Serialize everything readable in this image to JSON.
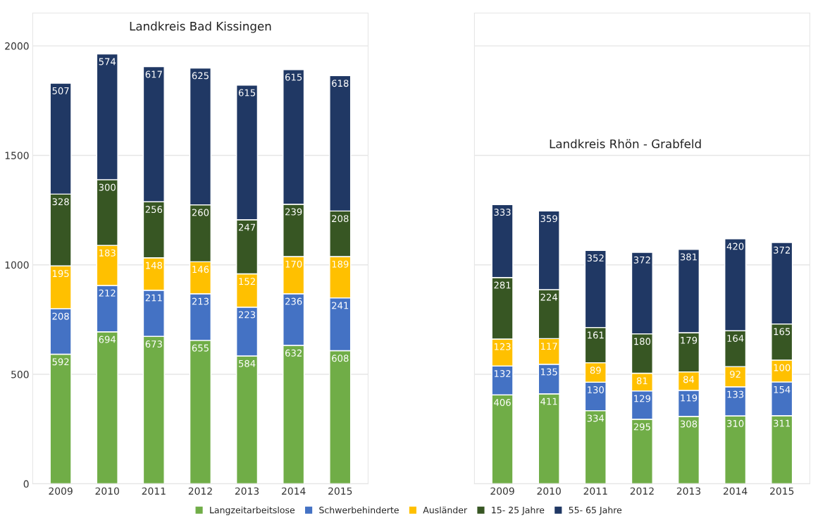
{
  "chart_data": [
    {
      "type": "bar",
      "title": "Landkreis Bad Kissingen",
      "stacked": true,
      "data_labels": true,
      "grid": "y",
      "legend": "bottom",
      "categories": [
        "2009",
        "2010",
        "2011",
        "2012",
        "2013",
        "2014",
        "2015"
      ],
      "ylim": [
        0,
        2150
      ],
      "yticks": [
        0,
        500,
        1000,
        1500,
        2000
      ],
      "series": [
        {
          "name": "Langzeitarbeitslose",
          "color": "#70ad47",
          "values": [
            592,
            694,
            673,
            655,
            584,
            632,
            608
          ]
        },
        {
          "name": "Schwerbehinderte",
          "color": "#4472c4",
          "values": [
            208,
            212,
            211,
            213,
            223,
            236,
            241
          ]
        },
        {
          "name": "Ausländer",
          "color": "#ffc000",
          "values": [
            195,
            183,
            148,
            146,
            152,
            170,
            189
          ]
        },
        {
          "name": "15- 25 Jahre",
          "color": "#375623",
          "values": [
            328,
            300,
            256,
            260,
            247,
            239,
            208
          ]
        },
        {
          "name": "55- 65 Jahre",
          "color": "#203864",
          "values": [
            507,
            574,
            617,
            625,
            615,
            615,
            618
          ]
        }
      ]
    },
    {
      "type": "bar",
      "title": "Landkreis Rhön - Grabfeld",
      "stacked": true,
      "data_labels": true,
      "grid": "y",
      "tick_labels": "x",
      "categories": [
        "2009",
        "2010",
        "2011",
        "2012",
        "2013",
        "2014",
        "2015"
      ],
      "ylim": [
        0,
        2150
      ],
      "yticks": [
        0,
        500,
        1000,
        1500,
        2000
      ],
      "series": [
        {
          "color": "#70ad47",
          "values": [
            406,
            411,
            334,
            295,
            308,
            310,
            311
          ]
        },
        {
          "color": "#4472c4",
          "values": [
            132,
            135,
            130,
            129,
            119,
            133,
            154
          ]
        },
        {
          "color": "#ffc000",
          "values": [
            123,
            117,
            89,
            81,
            84,
            92,
            100
          ]
        },
        {
          "color": "#375623",
          "values": [
            281,
            224,
            161,
            180,
            179,
            164,
            165
          ]
        },
        {
          "color": "#203864",
          "values": [
            333,
            359,
            352,
            372,
            381,
            420,
            372
          ]
        }
      ]
    }
  ]
}
